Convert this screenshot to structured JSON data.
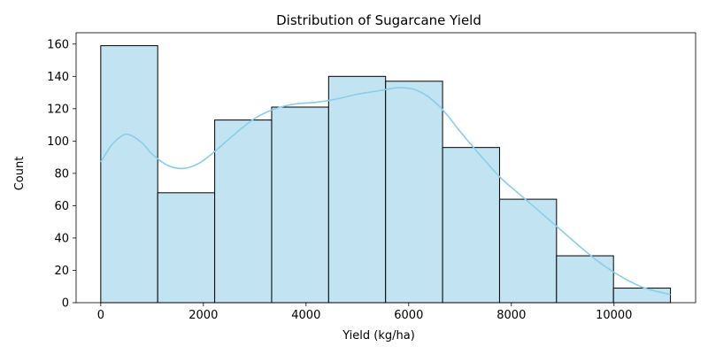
{
  "chart_data": {
    "type": "bar",
    "title": "Distribution of Sugarcane Yield",
    "xlabel": "Yield (kg/ha)",
    "ylabel": "Count",
    "xlim": [
      -480,
      11590
    ],
    "ylim": [
      0,
      167
    ],
    "xticks": [
      0,
      2000,
      4000,
      6000,
      8000,
      10000
    ],
    "yticks": [
      0,
      20,
      40,
      60,
      80,
      100,
      120,
      140,
      160
    ],
    "bins": [
      {
        "start": 0,
        "end": 1110,
        "count": 159
      },
      {
        "start": 1110,
        "end": 2220,
        "count": 68
      },
      {
        "start": 2220,
        "end": 3330,
        "count": 113
      },
      {
        "start": 3330,
        "end": 4440,
        "count": 121
      },
      {
        "start": 4440,
        "end": 5550,
        "count": 140
      },
      {
        "start": 5550,
        "end": 6660,
        "count": 137
      },
      {
        "start": 6660,
        "end": 7770,
        "count": 96
      },
      {
        "start": 7770,
        "end": 8880,
        "count": 64
      },
      {
        "start": 8880,
        "end": 9990,
        "count": 29
      },
      {
        "start": 9990,
        "end": 11100,
        "count": 9
      }
    ],
    "kde": [
      [
        0,
        87
      ],
      [
        200,
        97
      ],
      [
        400,
        103
      ],
      [
        550,
        104
      ],
      [
        800,
        99
      ],
      [
        1000,
        92
      ],
      [
        1300,
        85
      ],
      [
        1600,
        83
      ],
      [
        1900,
        86
      ],
      [
        2200,
        93
      ],
      [
        2600,
        104
      ],
      [
        3000,
        114
      ],
      [
        3400,
        120
      ],
      [
        3800,
        123
      ],
      [
        4200,
        124
      ],
      [
        4600,
        126
      ],
      [
        5000,
        129
      ],
      [
        5400,
        131
      ],
      [
        5800,
        133
      ],
      [
        6100,
        132
      ],
      [
        6400,
        127
      ],
      [
        6700,
        118
      ],
      [
        7000,
        106
      ],
      [
        7400,
        91
      ],
      [
        7800,
        77
      ],
      [
        8200,
        66
      ],
      [
        8600,
        55
      ],
      [
        9000,
        44
      ],
      [
        9400,
        33
      ],
      [
        9800,
        23
      ],
      [
        10200,
        15
      ],
      [
        10600,
        9
      ],
      [
        11100,
        5
      ]
    ],
    "grid": false,
    "colors": {
      "bar_fill": "#c2e4f2",
      "bar_edge": "#000000",
      "kde_line": "#87ceeb"
    }
  }
}
